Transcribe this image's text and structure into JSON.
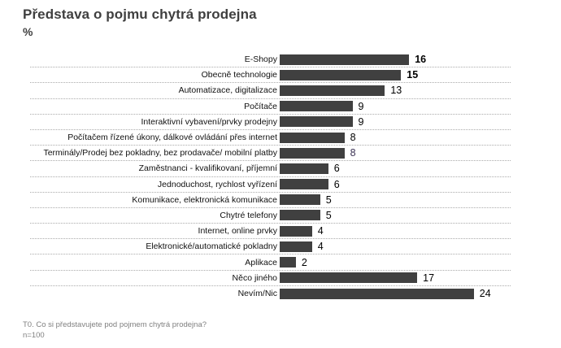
{
  "header": {
    "title": "Představa o pojmu chytrá prodejna",
    "subtitle": "%"
  },
  "chart_data": {
    "type": "bar",
    "orientation": "horizontal",
    "title": "Představa o pojmu chytrá prodejna",
    "xlabel": "%",
    "ylabel": "",
    "xlim": [
      0,
      28
    ],
    "grid": "dotted-row-separators",
    "legend": "none",
    "categories": [
      "E-Shopy",
      "Obecně technologie",
      "Automatizace, digitalizace",
      "Počítače",
      "Interaktivní vybavení/prvky prodejny",
      "Počítačem řízené úkony, dálkové ovládání přes internet",
      "Terminály/Prodej bez pokladny, bez prodavače/ mobilní platby",
      "Zaměstnanci - kvalifikovaní, příjemní",
      "Jednoduchost, rychlost vyřízení",
      "Komunikace, elektronická komunikace",
      "Chytré telefony",
      "Internet, online prvky",
      "Elektronické/automatické pokladny",
      "Aplikace",
      "Něco jiného",
      "Nevím/Nic"
    ],
    "values": [
      16,
      15,
      13,
      9,
      9,
      8,
      8,
      6,
      6,
      5,
      5,
      4,
      4,
      2,
      17,
      24
    ],
    "bold_value_indexes": [
      0,
      1
    ],
    "value_color_overrides": {
      "6": "#3a3153"
    }
  },
  "colors": {
    "bar": "#404040",
    "separator": "#ababab",
    "title_text": "#3f3f3f",
    "label_text": "#111111",
    "value_text": "#000000",
    "footer_text": "#808080"
  },
  "footer": {
    "question": "T0. Co si představujete pod pojmem chytrá prodejna?",
    "sample": "n=100"
  }
}
